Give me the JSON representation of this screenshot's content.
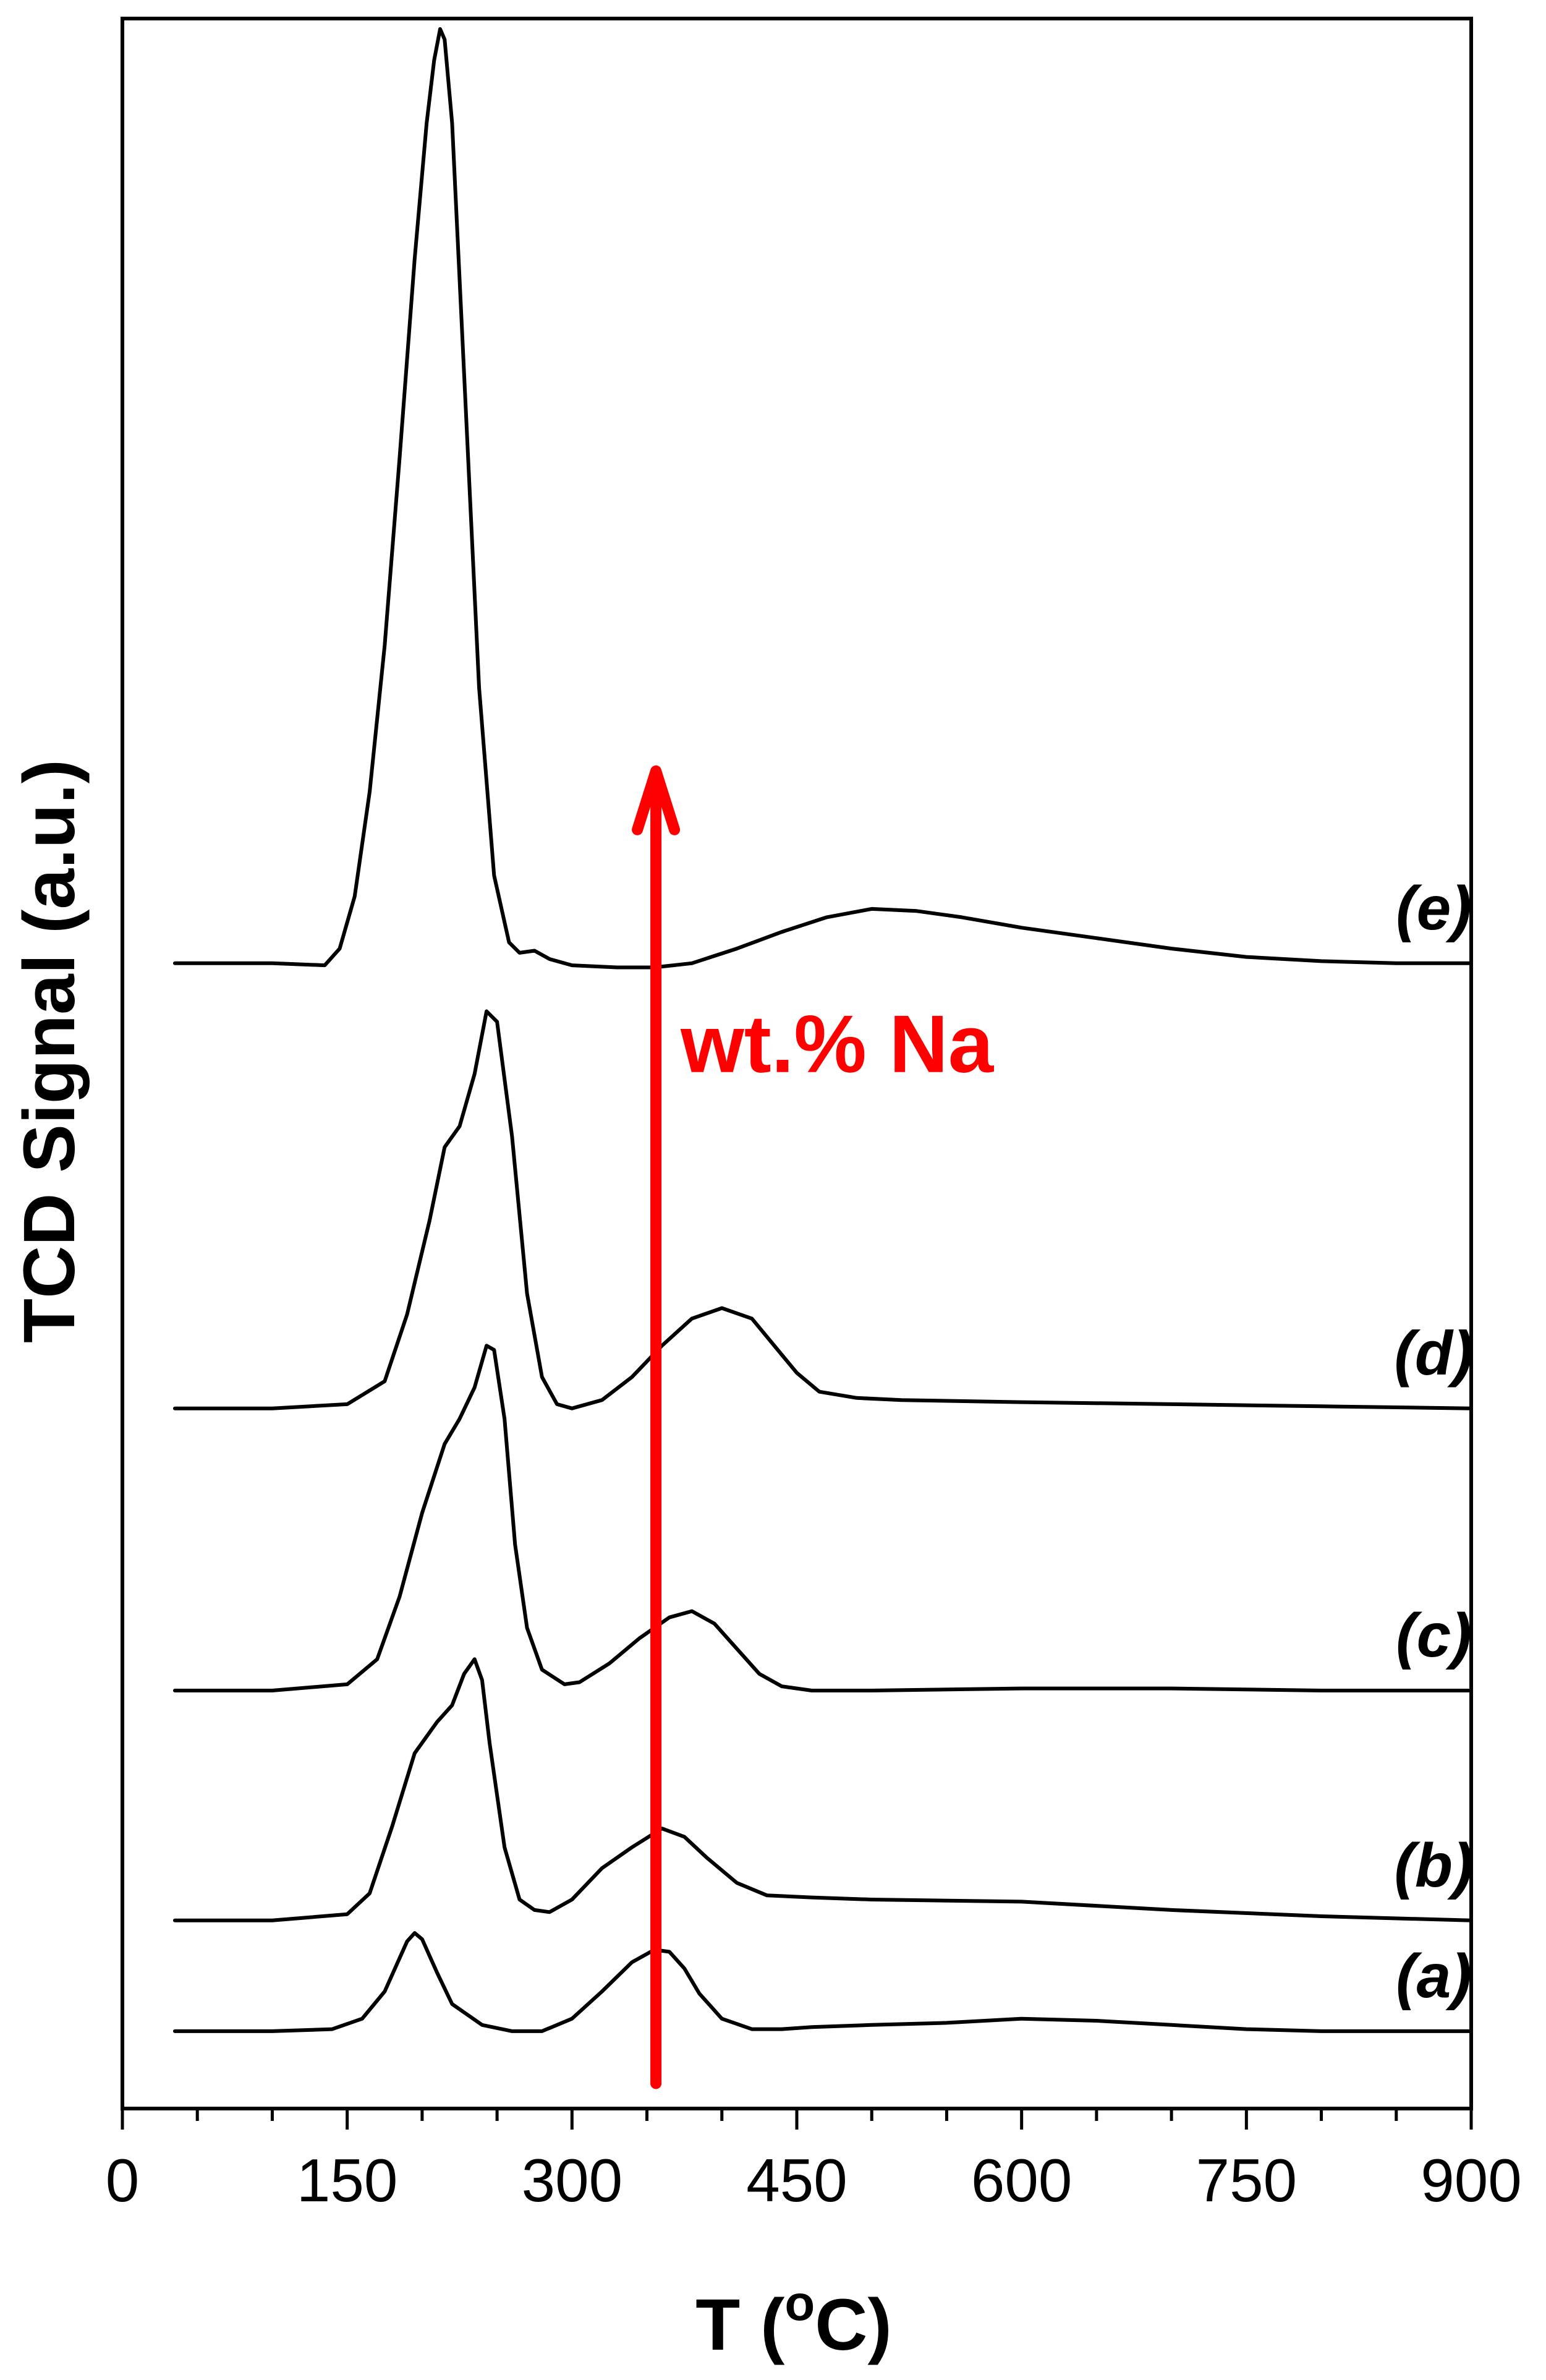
{
  "chart_data": {
    "type": "line",
    "title": "",
    "xlabel": "T (oC)",
    "xlabel_parts": {
      "main": "T (",
      "sup": "o",
      "end": "C)"
    },
    "ylabel": "TCD Signal (a.u.)",
    "xlim": [
      0,
      900
    ],
    "ylim": [
      0,
      100
    ],
    "x_ticks": [
      0,
      150,
      300,
      450,
      600,
      750,
      900
    ],
    "x_tick_labels": [
      "0",
      "150",
      "300",
      "450",
      "600",
      "750",
      "900"
    ],
    "y_ticks_shown": false,
    "grid": false,
    "legend": "none",
    "series": [
      {
        "name": "(a)",
        "x": [
          35,
          100,
          140,
          160,
          175,
          185,
          190,
          195,
          200,
          210,
          220,
          240,
          260,
          280,
          300,
          320,
          340,
          355,
          365,
          375,
          385,
          400,
          420,
          440,
          460,
          500,
          550,
          600,
          650,
          700,
          750,
          800,
          850,
          900
        ],
        "y": [
          3.7,
          3.7,
          3.8,
          4.3,
          5.6,
          7.2,
          8.0,
          8.4,
          8.1,
          6.5,
          5.0,
          4.0,
          3.7,
          3.7,
          4.3,
          5.6,
          7.0,
          7.6,
          7.5,
          6.7,
          5.5,
          4.3,
          3.8,
          3.8,
          3.9,
          4.0,
          4.1,
          4.3,
          4.2,
          4.0,
          3.8,
          3.7,
          3.7,
          3.7
        ]
      },
      {
        "name": "(b)",
        "x": [
          35,
          100,
          150,
          165,
          180,
          195,
          210,
          220,
          228,
          235,
          240,
          245,
          255,
          265,
          275,
          285,
          300,
          320,
          340,
          360,
          375,
          390,
          410,
          430,
          460,
          500,
          600,
          700,
          800,
          900
        ],
        "y": [
          9.0,
          9.0,
          9.3,
          10.3,
          13.5,
          17.0,
          18.5,
          19.3,
          20.8,
          21.5,
          20.5,
          17.5,
          12.5,
          10.0,
          9.5,
          9.4,
          10.0,
          11.5,
          12.5,
          13.4,
          13.0,
          12.0,
          10.8,
          10.2,
          10.1,
          10.0,
          9.9,
          9.5,
          9.2,
          9.0
        ]
      },
      {
        "name": "(c)",
        "x": [
          35,
          100,
          150,
          170,
          185,
          200,
          215,
          225,
          235,
          243,
          248,
          255,
          262,
          270,
          280,
          295,
          305,
          325,
          345,
          365,
          380,
          395,
          410,
          425,
          440,
          460,
          500,
          600,
          700,
          800,
          900
        ],
        "y": [
          20.0,
          20.0,
          20.3,
          21.5,
          24.5,
          28.5,
          31.8,
          33.0,
          34.5,
          36.5,
          36.3,
          33.0,
          27.0,
          23.0,
          21.0,
          20.3,
          20.4,
          21.3,
          22.5,
          23.5,
          23.8,
          23.2,
          22.0,
          20.8,
          20.2,
          20.0,
          20.0,
          20.1,
          20.1,
          20.0,
          20.0
        ]
      },
      {
        "name": "(d)",
        "x": [
          35,
          100,
          150,
          175,
          190,
          205,
          215,
          225,
          235,
          243,
          250,
          260,
          270,
          280,
          290,
          300,
          320,
          340,
          360,
          380,
          400,
          420,
          435,
          450,
          465,
          490,
          520,
          600,
          700,
          800,
          900
        ],
        "y": [
          33.5,
          33.5,
          33.7,
          34.8,
          38.0,
          42.5,
          46.0,
          47.0,
          49.5,
          52.5,
          52.0,
          46.5,
          39.0,
          35.0,
          33.7,
          33.5,
          33.9,
          35.0,
          36.5,
          37.8,
          38.3,
          37.8,
          36.5,
          35.2,
          34.3,
          34.0,
          33.9,
          33.8,
          33.7,
          33.6,
          33.5
        ]
      },
      {
        "name": "(e)",
        "x": [
          35,
          100,
          135,
          145,
          155,
          165,
          175,
          185,
          195,
          203,
          208,
          212,
          215,
          220,
          228,
          238,
          248,
          258,
          265,
          275,
          285,
          300,
          330,
          355,
          380,
          410,
          440,
          470,
          500,
          530,
          560,
          600,
          650,
          700,
          750,
          800,
          850,
          900
        ],
        "y": [
          54.8,
          54.8,
          54.7,
          55.5,
          58.0,
          63.0,
          70.0,
          79.0,
          88.5,
          95.0,
          98.0,
          99.5,
          99.0,
          95.0,
          83.0,
          68.0,
          59.0,
          55.8,
          55.3,
          55.4,
          55.0,
          54.7,
          54.6,
          54.6,
          54.8,
          55.5,
          56.3,
          57.0,
          57.4,
          57.3,
          57.0,
          56.5,
          56.0,
          55.5,
          55.1,
          54.9,
          54.8,
          54.8
        ]
      }
    ],
    "series_labels": [
      "(a)",
      "(b)",
      "(c)",
      "(d)",
      "(e)"
    ],
    "annotation": {
      "text": "wt.% Na",
      "arrow_x": 356,
      "arrow_y_from": 1.2,
      "arrow_y_to": 64,
      "color": "#ff0000"
    },
    "colors": {
      "line": "#000000",
      "axis": "#000000",
      "annotation": "#ff0000"
    }
  }
}
